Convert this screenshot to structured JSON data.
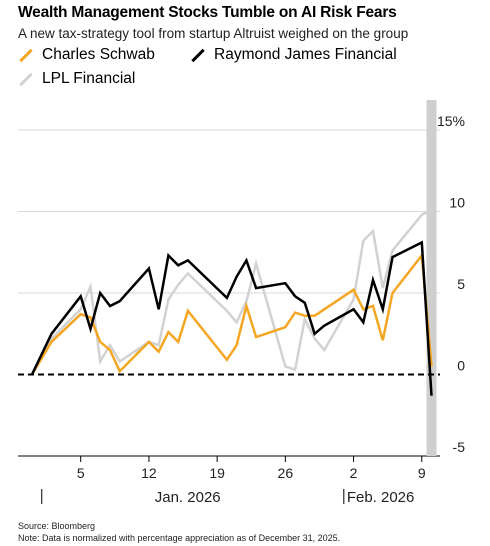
{
  "chart_data": {
    "type": "line",
    "title": "Wealth Management Stocks Tumble on AI Risk Fears",
    "subtitle": "A new tax-strategy tool from startup Altruist weighed on the group",
    "ylim": [
      -5,
      15
    ],
    "yticks": [
      15,
      10,
      5,
      0,
      -5
    ],
    "ytick_labels": [
      "15%",
      "10",
      "5",
      "0",
      "-5"
    ],
    "xticks": [
      {
        "date": "2026-01-05",
        "label": "5"
      },
      {
        "date": "2026-01-12",
        "label": "12"
      },
      {
        "date": "2026-01-19",
        "label": "19"
      },
      {
        "date": "2026-01-26",
        "label": "26"
      },
      {
        "date": "2026-02-02",
        "label": "2"
      },
      {
        "date": "2026-02-09",
        "label": "9"
      }
    ],
    "xlim": [
      "2025-12-31",
      "2026-02-12"
    ],
    "month_labels": [
      {
        "date": "2026-01-01",
        "label": "Jan. 2026"
      },
      {
        "date": "2026-02-01",
        "label": "Feb. 2026"
      }
    ],
    "highlight_date": "2026-02-10",
    "zero_line": "dashed",
    "grid": true,
    "series": [
      {
        "name": "LPL Financial",
        "color": "#d2d2d2",
        "x": [
          "2025-12-31",
          "2026-01-02",
          "2026-01-05",
          "2026-01-06",
          "2026-01-07",
          "2026-01-08",
          "2026-01-09",
          "2026-01-12",
          "2026-01-13",
          "2026-01-14",
          "2026-01-15",
          "2026-01-16",
          "2026-01-20",
          "2026-01-21",
          "2026-01-22",
          "2026-01-23",
          "2026-01-26",
          "2026-01-27",
          "2026-01-28",
          "2026-01-29",
          "2026-01-30",
          "2026-02-02",
          "2026-02-03",
          "2026-02-04",
          "2026-02-05",
          "2026-02-06",
          "2026-02-09",
          "2026-02-10"
        ],
        "values": [
          0,
          2.2,
          4.0,
          5.4,
          0.8,
          1.8,
          0.8,
          2.0,
          1.8,
          4.6,
          5.5,
          6.2,
          3.9,
          3.2,
          4.5,
          6.8,
          0.5,
          0.3,
          3.4,
          2.2,
          1.5,
          4.6,
          8.2,
          8.8,
          5.3,
          7.6,
          9.8,
          10.1
        ]
      },
      {
        "name": "Charles Schwab",
        "color": "#f5a623",
        "x": [
          "2025-12-31",
          "2026-01-02",
          "2026-01-05",
          "2026-01-06",
          "2026-01-07",
          "2026-01-08",
          "2026-01-09",
          "2026-01-12",
          "2026-01-13",
          "2026-01-14",
          "2026-01-15",
          "2026-01-16",
          "2026-01-20",
          "2026-01-21",
          "2026-01-22",
          "2026-01-23",
          "2026-01-26",
          "2026-01-27",
          "2026-01-28",
          "2026-01-29",
          "2026-01-30",
          "2026-02-02",
          "2026-02-03",
          "2026-02-04",
          "2026-02-05",
          "2026-02-06",
          "2026-02-09",
          "2026-02-10"
        ],
        "values": [
          0,
          2.0,
          3.7,
          3.5,
          2.0,
          1.5,
          0.2,
          2.0,
          1.4,
          2.6,
          2.0,
          3.9,
          0.9,
          1.8,
          4.2,
          2.3,
          2.9,
          3.8,
          3.6,
          3.6,
          4.0,
          5.2,
          4.0,
          4.2,
          2.1,
          5.0,
          7.3,
          0.5
        ]
      },
      {
        "name": "Raymond James Financial",
        "color": "#000000",
        "x": [
          "2025-12-31",
          "2026-01-02",
          "2026-01-05",
          "2026-01-06",
          "2026-01-07",
          "2026-01-08",
          "2026-01-09",
          "2026-01-12",
          "2026-01-13",
          "2026-01-14",
          "2026-01-15",
          "2026-01-16",
          "2026-01-20",
          "2026-01-21",
          "2026-01-22",
          "2026-01-23",
          "2026-01-26",
          "2026-01-27",
          "2026-01-28",
          "2026-01-29",
          "2026-01-30",
          "2026-02-02",
          "2026-02-03",
          "2026-02-04",
          "2026-02-05",
          "2026-02-06",
          "2026-02-09",
          "2026-02-10"
        ],
        "values": [
          0,
          2.5,
          4.8,
          2.8,
          5.0,
          4.2,
          4.5,
          6.5,
          4.0,
          7.3,
          6.7,
          7.0,
          4.7,
          6.0,
          7.0,
          5.3,
          5.6,
          4.8,
          4.4,
          2.5,
          3.0,
          4.0,
          3.2,
          5.8,
          4.0,
          7.2,
          8.1,
          -1.3
        ]
      }
    ]
  },
  "legend": [
    {
      "label": "Charles Schwab",
      "color": "#f5a623"
    },
    {
      "label": "Raymond James Financial",
      "color": "#000000"
    },
    {
      "label": "LPL Financial",
      "color": "#d2d2d2"
    }
  ],
  "footer": {
    "source": "Source: Bloomberg",
    "note": "Note: Data is normalized with percentage appreciation as of December 31, 2025."
  }
}
